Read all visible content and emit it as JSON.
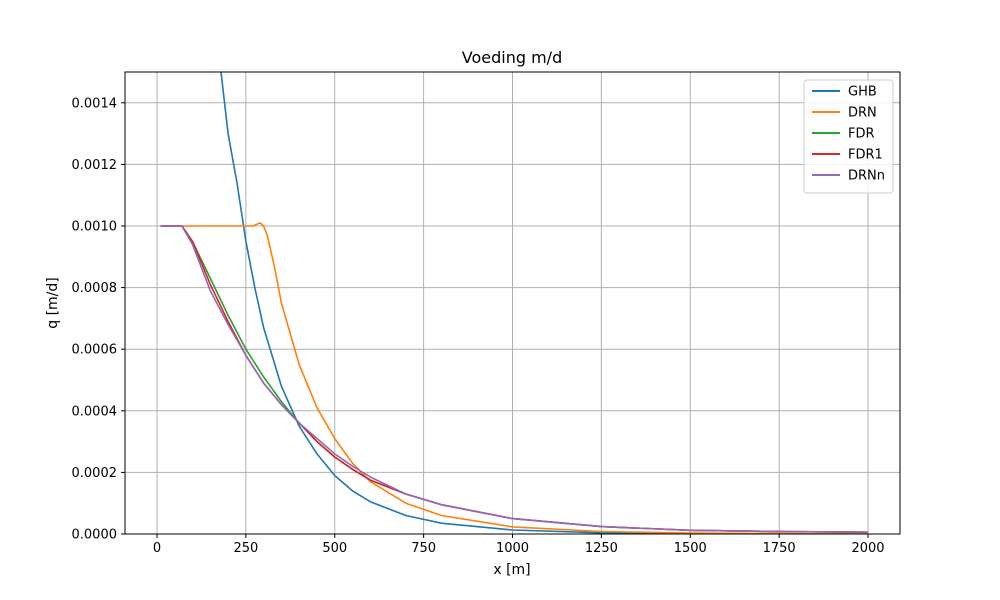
{
  "chart_data": {
    "type": "line",
    "title": "Voeding m/d",
    "xlabel": "x [m]",
    "ylabel": "q [m/d]",
    "xlim": [
      -90,
      2090
    ],
    "ylim": [
      0,
      0.0015
    ],
    "xticks": [
      0,
      250,
      500,
      750,
      1000,
      1250,
      1500,
      1750,
      2000
    ],
    "xtick_labels": [
      "0",
      "250",
      "500",
      "750",
      "1000",
      "1250",
      "1500",
      "1750",
      "2000"
    ],
    "yticks": [
      0,
      0.0002,
      0.0004,
      0.0006,
      0.0008,
      0.001,
      0.0012,
      0.0014
    ],
    "ytick_labels": [
      "0.0000",
      "0.0002",
      "0.0004",
      "0.0006",
      "0.0008",
      "0.0010",
      "0.0012",
      "0.0014"
    ],
    "grid": true,
    "legend_position": "top-right",
    "series": [
      {
        "name": "GHB",
        "color": "#1f77b4",
        "x": [
          180,
          200,
          225,
          250,
          275,
          300,
          350,
          400,
          450,
          500,
          550,
          600,
          700,
          800,
          1000,
          1250,
          1500,
          1750,
          2000
        ],
        "y": [
          0.0015,
          0.0013,
          0.00114,
          0.00095,
          0.0008,
          0.00067,
          0.00048,
          0.00035,
          0.00026,
          0.00019,
          0.00014,
          0.000105,
          6e-05,
          3.5e-05,
          1.3e-05,
          4e-06,
          1.5e-06,
          6e-07,
          3e-07
        ]
      },
      {
        "name": "DRN",
        "color": "#ff7f0e",
        "x": [
          10,
          100,
          200,
          270,
          290,
          300,
          310,
          330,
          350,
          400,
          450,
          500,
          550,
          600,
          700,
          800,
          1000,
          1250,
          1500,
          1750,
          2000
        ],
        "y": [
          0.001,
          0.001,
          0.001,
          0.001,
          0.00101,
          0.001,
          0.00097,
          0.00087,
          0.00075,
          0.00055,
          0.00041,
          0.00031,
          0.00023,
          0.00017,
          0.0001,
          6e-05,
          2.3e-05,
          8e-06,
          3e-06,
          1.2e-06,
          5e-07
        ]
      },
      {
        "name": "FDR",
        "color": "#2ca02c",
        "x": [
          10,
          70,
          100,
          150,
          200,
          250,
          300,
          350,
          400,
          450,
          500,
          550,
          600,
          700,
          800,
          1000,
          1250,
          1500,
          1750,
          2000
        ],
        "y": [
          0.001,
          0.001,
          0.00095,
          0.00083,
          0.00071,
          0.0006,
          0.00051,
          0.00043,
          0.00036,
          0.0003,
          0.00025,
          0.00021,
          0.000175,
          0.00013,
          9.5e-05,
          5e-05,
          2.4e-05,
          1.2e-05,
          8e-06,
          6e-06
        ]
      },
      {
        "name": "FDR1",
        "color": "#d62728",
        "x": [
          10,
          70,
          100,
          150,
          200,
          250,
          300,
          350,
          400,
          450,
          500,
          550,
          600,
          700,
          800,
          1000,
          1250,
          1500,
          1750,
          2000
        ],
        "y": [
          0.001,
          0.001,
          0.00095,
          0.00081,
          0.00069,
          0.00058,
          0.00049,
          0.00042,
          0.00036,
          0.0003,
          0.00025,
          0.00021,
          0.000175,
          0.00013,
          9.5e-05,
          5e-05,
          2.4e-05,
          1.2e-05,
          8e-06,
          6e-06
        ]
      },
      {
        "name": "DRNn",
        "color": "#9467bd",
        "x": [
          10,
          70,
          100,
          150,
          200,
          250,
          300,
          350,
          400,
          450,
          500,
          550,
          600,
          700,
          800,
          1000,
          1250,
          1500,
          1750,
          2000
        ],
        "y": [
          0.001,
          0.001,
          0.00094,
          0.00079,
          0.00068,
          0.00058,
          0.00049,
          0.00042,
          0.00036,
          0.00031,
          0.00026,
          0.00022,
          0.000185,
          0.00013,
          9.5e-05,
          5e-05,
          2.4e-05,
          1.2e-05,
          8e-06,
          6e-06
        ]
      }
    ]
  }
}
